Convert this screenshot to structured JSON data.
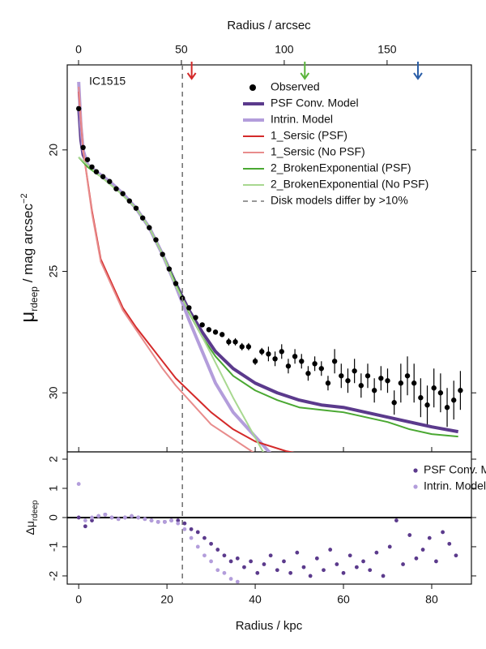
{
  "chart_data": [
    {
      "type": "line",
      "annotation": "IC1515",
      "x2label": "Radius / arcsec",
      "ylabel": {
        "symbol": "μ",
        "sub": "rdeep",
        "text": " / mag arcsec",
        "sup": "−2"
      },
      "xlim": [
        -2.6,
        89
      ],
      "ylim": [
        32.43,
        16.5
      ],
      "yticks": [
        20,
        25,
        30
      ],
      "x2lim": [
        -5.5,
        191
      ],
      "x2ticks": [
        0,
        50,
        100,
        150
      ],
      "arrows": [
        {
          "x": 55,
          "color": "#d42a2a"
        },
        {
          "x": 110,
          "color": "#5ab43a"
        },
        {
          "x": 165,
          "color": "#2a5ea8"
        }
      ],
      "vline": {
        "x": 23.5,
        "label": "Disk models differ by >10%",
        "color": "#777777"
      },
      "legend": "top-right",
      "series": [
        {
          "name": "Observed",
          "color": "#000000",
          "marker": "point",
          "x": [
            0,
            1,
            2,
            3,
            4,
            5.5,
            7,
            8.5,
            10,
            11.5,
            13,
            14.5,
            16,
            17.5,
            19,
            20.5,
            22,
            23.5,
            25,
            26.5,
            28,
            29.5,
            31,
            32.5,
            34,
            35.5,
            37,
            38.5,
            40,
            41.5,
            43,
            44.5,
            46,
            47.5,
            49,
            50.5,
            52,
            53.5,
            55,
            56.5,
            58,
            59.5,
            61,
            62.5,
            64,
            65.5,
            67,
            68.5,
            70,
            71.5,
            73,
            74.5,
            76,
            77.5,
            79,
            80.5,
            82,
            83.5,
            85,
            86.5
          ],
          "values": [
            18.3,
            19.9,
            20.4,
            20.7,
            20.9,
            21.1,
            21.3,
            21.6,
            21.8,
            22.1,
            22.4,
            22.8,
            23.2,
            23.7,
            24.3,
            24.9,
            25.5,
            26.1,
            26.5,
            26.9,
            27.2,
            27.4,
            27.5,
            27.6,
            27.9,
            27.9,
            28.1,
            28.1,
            28.7,
            28.3,
            28.4,
            28.6,
            28.3,
            28.9,
            28.5,
            28.7,
            29.2,
            28.8,
            29.0,
            29.6,
            28.7,
            29.3,
            29.5,
            29.1,
            29.7,
            29.3,
            29.9,
            29.4,
            29.5,
            30.4,
            29.6,
            29.3,
            29.6,
            30.2,
            30.5,
            29.8,
            30.0,
            30.6,
            30.3,
            29.9
          ],
          "errors": [
            0.05,
            0.05,
            0.05,
            0.05,
            0.05,
            0.05,
            0.05,
            0.05,
            0.05,
            0.05,
            0.05,
            0.05,
            0.05,
            0.05,
            0.05,
            0.05,
            0.05,
            0.05,
            0.05,
            0.05,
            0.05,
            0.05,
            0.05,
            0.05,
            0.15,
            0.15,
            0.15,
            0.15,
            0.15,
            0.15,
            0.3,
            0.3,
            0.3,
            0.3,
            0.3,
            0.3,
            0.3,
            0.3,
            0.3,
            0.3,
            0.5,
            0.5,
            0.5,
            0.5,
            0.5,
            0.5,
            0.5,
            0.5,
            0.5,
            0.5,
            0.8,
            0.8,
            0.8,
            0.8,
            0.8,
            0.8,
            0.8,
            0.8,
            0.8,
            0.8
          ]
        },
        {
          "name": "PSF Conv. Model",
          "color": "#5b3a8c",
          "marker": "line",
          "width": 4,
          "x": [
            0,
            0.5,
            1,
            2,
            4,
            7,
            10,
            13,
            16,
            19,
            22,
            25,
            28,
            31,
            35,
            40,
            45,
            50,
            55,
            60,
            65,
            70,
            75,
            80,
            86
          ],
          "values": [
            18.2,
            19.6,
            20.2,
            20.6,
            20.9,
            21.3,
            21.8,
            22.4,
            23.2,
            24.3,
            25.5,
            26.6,
            27.5,
            28.3,
            29.0,
            29.6,
            30.0,
            30.3,
            30.5,
            30.6,
            30.8,
            31.0,
            31.2,
            31.4,
            31.6
          ]
        },
        {
          "name": "Intrin. Model",
          "color": "#b39ddb",
          "marker": "line",
          "width": 4,
          "x": [
            0,
            0.5,
            1,
            2,
            4,
            7,
            10,
            13,
            16,
            19,
            22,
            25,
            28,
            31,
            35,
            40,
            44
          ],
          "values": [
            17.2,
            19.0,
            20.0,
            20.6,
            20.9,
            21.3,
            21.8,
            22.4,
            23.2,
            24.3,
            25.6,
            27.0,
            28.3,
            29.6,
            30.8,
            31.8,
            32.6
          ]
        },
        {
          "name": "1_Sersic (PSF)",
          "color": "#d42a2a",
          "marker": "line",
          "width": 2,
          "x": [
            0,
            1,
            3,
            5,
            7.5,
            10,
            13,
            16,
            19,
            22,
            26,
            30,
            35,
            40,
            47,
            50
          ],
          "values": [
            17.6,
            20.0,
            22.5,
            24.5,
            25.5,
            26.5,
            27.3,
            28.0,
            28.7,
            29.4,
            30.1,
            30.8,
            31.5,
            32.0,
            32.4,
            32.5
          ]
        },
        {
          "name": "1_Sersic (No PSF)",
          "color": "#e88c8c",
          "marker": "line",
          "width": 2,
          "x": [
            0,
            1,
            3,
            5,
            7.5,
            10,
            13,
            16,
            19,
            22,
            26,
            30,
            35,
            40
          ],
          "values": [
            17.4,
            20.0,
            22.6,
            24.6,
            25.6,
            26.6,
            27.4,
            28.2,
            29.0,
            29.7,
            30.5,
            31.3,
            31.9,
            32.5
          ]
        },
        {
          "name": "2_BrokenExponential (PSF)",
          "color": "#4aa832",
          "marker": "line",
          "width": 2,
          "x": [
            0,
            2,
            5,
            9,
            13,
            16,
            19,
            22,
            25,
            28,
            31,
            35,
            40,
            45,
            50,
            55,
            60,
            65,
            70,
            75,
            80,
            86
          ],
          "values": [
            20.3,
            20.7,
            21.1,
            21.7,
            22.4,
            23.2,
            24.3,
            25.5,
            26.7,
            27.7,
            28.5,
            29.3,
            29.9,
            30.3,
            30.6,
            30.7,
            30.8,
            31.0,
            31.2,
            31.5,
            31.7,
            31.8
          ]
        },
        {
          "name": "2_BrokenExponential (No PSF)",
          "color": "#a8d890",
          "marker": "line",
          "width": 2,
          "x": [
            0,
            5,
            9,
            13,
            16,
            19,
            22,
            26,
            30,
            35,
            42
          ],
          "values": [
            20.3,
            21.1,
            21.7,
            22.4,
            23.2,
            24.3,
            25.6,
            27.0,
            28.4,
            30.2,
            32.5
          ]
        }
      ]
    },
    {
      "type": "scatter",
      "xlabel": "Radius / kpc",
      "ylabel": {
        "symbol": "Δμ",
        "sub": "rdeep"
      },
      "xlim": [
        -2.6,
        89
      ],
      "xticks": [
        0,
        20,
        40,
        60,
        80
      ],
      "ylim": [
        -2.28,
        2.25
      ],
      "yticks": [
        -2,
        -1,
        0,
        1,
        2
      ],
      "hline": 0,
      "legend": "top-right",
      "series": [
        {
          "name": "PSF Conv. Model",
          "color": "#5b3a8c",
          "x": [
            0,
            1.5,
            3,
            4.5,
            6,
            7.5,
            9,
            10.5,
            12,
            13.5,
            15,
            16.5,
            18,
            19.5,
            21,
            22.5,
            24,
            25.5,
            27,
            28.5,
            30,
            31.5,
            33,
            34.5,
            36,
            37.5,
            39,
            40.5,
            42,
            43.5,
            45,
            46.5,
            48,
            49.5,
            51,
            52.5,
            54,
            55.5,
            57,
            58.5,
            60,
            61.5,
            63,
            64.5,
            66,
            67.5,
            69,
            70.5,
            72,
            73.5,
            75,
            76.5,
            78,
            79.5,
            81,
            82.5,
            84,
            85.5
          ],
          "values": [
            0,
            -0.3,
            -0.1,
            0.05,
            0.1,
            0,
            -0.05,
            0,
            0.05,
            0,
            -0.05,
            -0.1,
            -0.15,
            -0.15,
            -0.1,
            -0.1,
            -0.2,
            -0.4,
            -0.5,
            -0.7,
            -0.9,
            -1.1,
            -1.3,
            -1.5,
            -1.4,
            -1.7,
            -1.5,
            -1.9,
            -1.6,
            -1.3,
            -1.8,
            -1.5,
            -1.9,
            -1.2,
            -1.7,
            -2.0,
            -1.4,
            -1.8,
            -1.1,
            -1.6,
            -1.9,
            -1.3,
            -1.7,
            -1.5,
            -1.8,
            -1.2,
            -2.0,
            -1.0,
            -0.1,
            -1.6,
            -0.6,
            -1.4,
            -1.1,
            -0.7,
            -1.5,
            -0.5,
            -0.9,
            -1.3
          ]
        },
        {
          "name": "Intrin. Model",
          "color": "#b39ddb",
          "x": [
            0,
            1.5,
            3,
            4.5,
            6,
            7.5,
            9,
            10.5,
            12,
            13.5,
            15,
            16.5,
            18,
            19.5,
            21,
            22.5,
            24,
            25.5,
            27,
            28.5,
            30,
            31.5,
            33,
            34.5,
            36
          ],
          "values": [
            1.15,
            -0.1,
            0,
            0.05,
            0.1,
            0,
            -0.05,
            0,
            0.05,
            0,
            -0.05,
            -0.1,
            -0.15,
            -0.15,
            -0.1,
            -0.2,
            -0.4,
            -0.7,
            -1.0,
            -1.3,
            -1.5,
            -1.8,
            -1.9,
            -2.1,
            -2.2
          ]
        }
      ]
    }
  ]
}
